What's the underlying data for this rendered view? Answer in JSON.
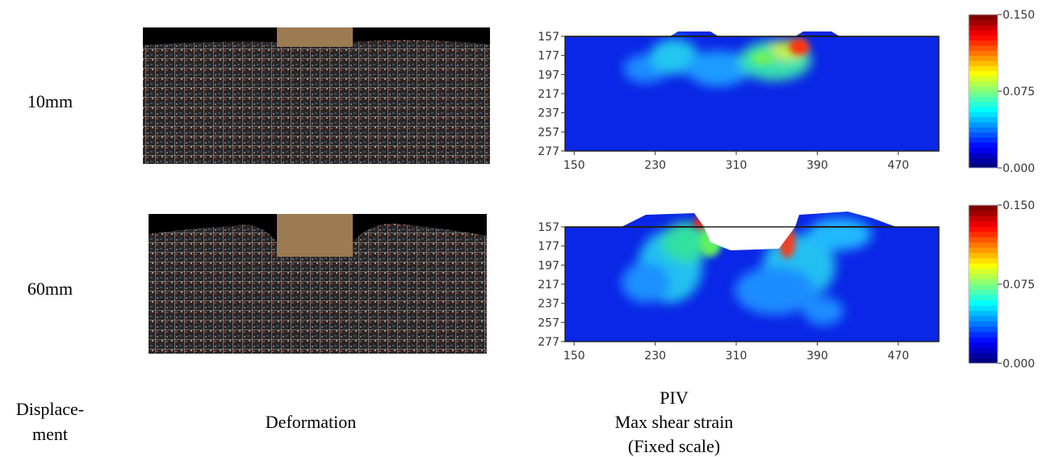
{
  "figure": {
    "row_labels": [
      "10mm",
      "60mm"
    ],
    "column_labels": {
      "displacement": [
        "Displace-",
        "ment"
      ],
      "deformation": "Deformation",
      "piv": [
        "PIV",
        "Max shear strain",
        "(Fixed scale)"
      ]
    },
    "panels": [
      {
        "xlim": [
          141,
          510
        ],
        "xticks": [
          150,
          230,
          310,
          390,
          470
        ],
        "ylim": [
          157,
          277
        ],
        "yticks": [
          157,
          177,
          197,
          217,
          237,
          257,
          277
        ],
        "colorbar": {
          "lim": [
            0,
            0.15
          ],
          "ticks": [
            {
              "value": 0,
              "label": "0.000"
            },
            0.075,
            {
              "value": 0.15,
              "label": "0.150"
            }
          ]
        }
      },
      {
        "xlim": [
          141,
          510
        ],
        "xticks": [
          150,
          230,
          310,
          390,
          470
        ],
        "ylim": [
          157,
          277
        ],
        "yticks": [
          157,
          177,
          197,
          217,
          237,
          257,
          277
        ],
        "colorbar": {
          "lim": [
            0,
            0.15
          ],
          "ticks": [
            {
              "value": 0,
              "label": "0.000"
            },
            0.075,
            {
              "value": 0.15,
              "label": "0.150"
            }
          ]
        }
      }
    ]
  }
}
